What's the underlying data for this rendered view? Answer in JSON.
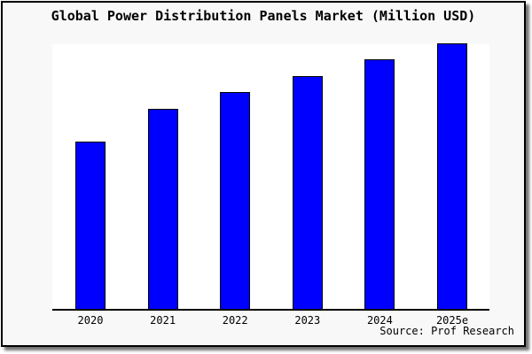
{
  "window": {
    "title": "Global Power Distribution Panels Market (Million USD)"
  },
  "chart_data": {
    "type": "bar",
    "title": "Global Power Distribution Panels Market (Million USD)",
    "categories": [
      "2020",
      "2021",
      "2022",
      "2023",
      "2024",
      "2025e"
    ],
    "values": [
      63.0,
      75.3,
      81.7,
      87.7,
      94.0,
      100.0
    ],
    "value_scale": "relative height, tallest bar (2025e) = 100; y-axis shows no ticks, labels or gridlines in the image",
    "xlabel": "",
    "ylabel": "",
    "ylim": [
      0,
      100.3
    ],
    "grid": false,
    "legend": "none",
    "bar_color": "#0000ff",
    "bar_border_color": "#000000",
    "source": "Source: Prof Research"
  },
  "colors": {
    "card_bg": "#f8f8f8",
    "plot_bg": "#ffffff",
    "frame": "#000000",
    "text": "#000000",
    "shadow": "#8a8a8a"
  }
}
